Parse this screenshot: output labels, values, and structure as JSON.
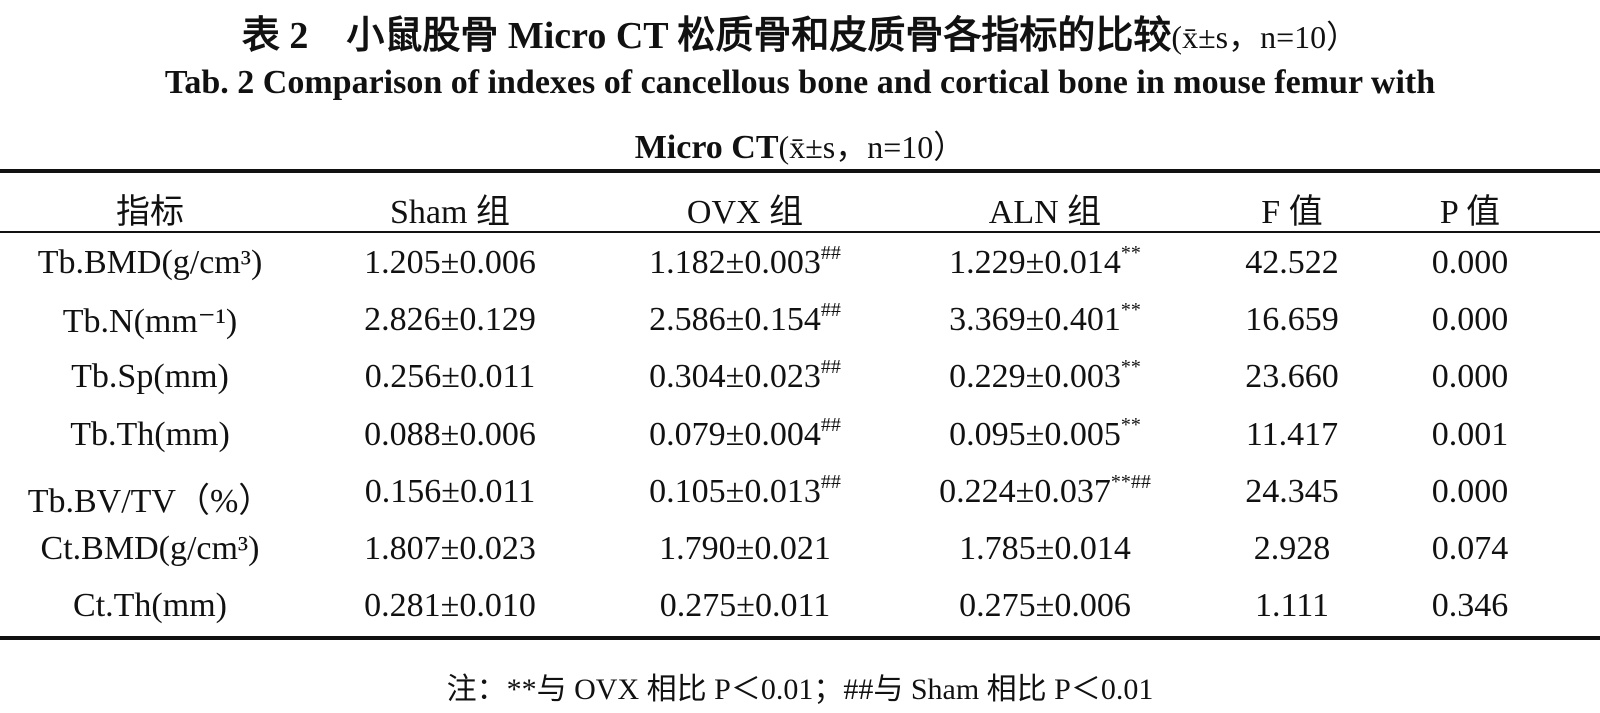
{
  "title": {
    "main": "表 2　小鼠股骨 Micro CT 松质骨和皮质骨各指标的比较",
    "stat": "(x̄±s，n=10）"
  },
  "subtitle": {
    "line1": "Tab. 2 Comparison of indexes of cancellous bone and cortical bone in mouse femur with",
    "line2": "Micro CT",
    "stat": "(x̄±s，n=10）"
  },
  "table": {
    "header": [
      "指标",
      "Sham 组",
      "OVX 组",
      "ALN 组",
      "F 值",
      "P 值"
    ],
    "rows": [
      [
        "Tb.BMD(g/cm³)",
        "1.205±0.006",
        {
          "text": "1.182±0.003",
          "sup": "##"
        },
        {
          "text": "1.229±0.014",
          "sup": "**"
        },
        "42.522",
        "0.000"
      ],
      [
        "Tb.N(mm⁻¹)",
        "2.826±0.129",
        {
          "text": "2.586±0.154",
          "sup": "##"
        },
        {
          "text": "3.369±0.401",
          "sup": "**"
        },
        "16.659",
        "0.000"
      ],
      [
        "Tb.Sp(mm)",
        "0.256±0.011",
        {
          "text": "0.304±0.023",
          "sup": "##"
        },
        {
          "text": "0.229±0.003",
          "sup": "**"
        },
        "23.660",
        "0.000"
      ],
      [
        "Tb.Th(mm)",
        "0.088±0.006",
        {
          "text": "0.079±0.004",
          "sup": "##"
        },
        {
          "text": "0.095±0.005",
          "sup": "**"
        },
        "11.417",
        "0.001"
      ],
      [
        "Tb.BV/TV（%）",
        "0.156±0.011",
        {
          "text": "0.105±0.013",
          "sup": "##"
        },
        {
          "text": "0.224±0.037",
          "sup": "**##"
        },
        "24.345",
        "0.000"
      ],
      [
        "Ct.BMD(g/cm³)",
        "1.807±0.023",
        "1.790±0.021",
        "1.785±0.014",
        "2.928",
        "0.074"
      ],
      [
        "Ct.Th(mm)",
        "0.281±0.010",
        "0.275±0.011",
        "0.275±0.006",
        "1.111",
        "0.346"
      ]
    ]
  },
  "note": "注：**与 OVX 相比 P＜0.01；##与 Sham 相比 P＜0.01"
}
